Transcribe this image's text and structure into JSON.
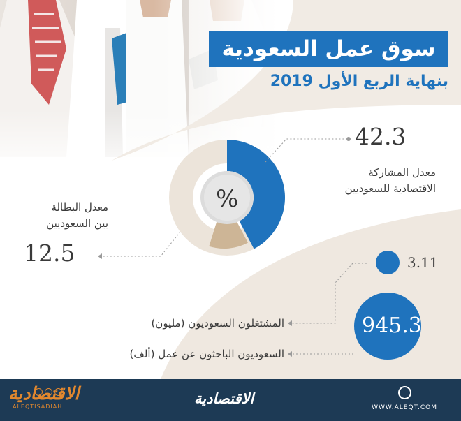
{
  "header": {
    "title": "سوق عمل السعودية",
    "subtitle": "بنهاية الربع الأول 2019"
  },
  "donut": {
    "center_symbol": "%",
    "participation": {
      "value": "42.3",
      "label_line1": "معدل المشاركة",
      "label_line2": "الاقتصادية للسعوديين"
    },
    "unemployment": {
      "value": "12.5",
      "label_line1": "معدل البطالة",
      "label_line2": "بين السعوديين"
    }
  },
  "bubbles": {
    "employed": {
      "value": "3.11",
      "label": "المشتغلون السعوديون (مليون)"
    },
    "job_seekers": {
      "value": "945.3",
      "label": "السعوديون الباحثون عن عمل (ألف)"
    }
  },
  "footer": {
    "brand_left": "الاقتصادية",
    "brand_left_sub": "ALEQTISADIAH",
    "brand_center": "الاقتصادية",
    "url": "WWW.ALEQT.COM"
  },
  "colors": {
    "accent_blue": "#1f73bd",
    "beige": "#e9e0d4",
    "tan": "#cdb596",
    "footer_bg": "#1d3a55",
    "brand_orange": "#e2882e"
  },
  "chart_data": {
    "type": "pie",
    "values": [
      42.3,
      12.5
    ],
    "labels": [
      "معدل المشاركة الاقتصادية للسعوديين",
      "معدل البطالة بين السعوديين"
    ]
  }
}
